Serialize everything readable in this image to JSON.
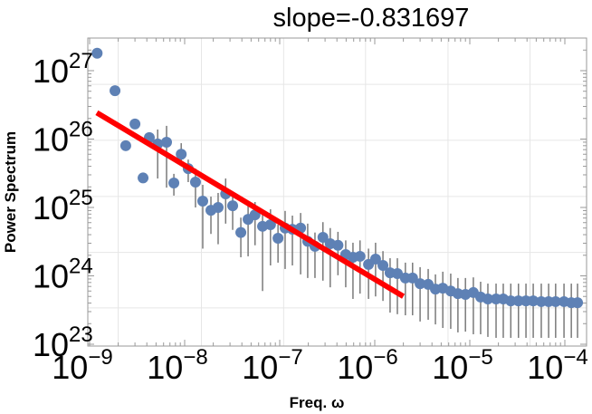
{
  "chart_data": {
    "type": "scatter",
    "title": "slope=-0.831697",
    "xlabel": "Freq. ω",
    "ylabel": "Power Spectrum",
    "x_scale": "log",
    "y_scale": "log",
    "xlim": [
      9.6e-10,
      0.00017
    ],
    "ylim": [
      9.4e+22,
      3e+27
    ],
    "grid": true,
    "x_gridlines": [
      2e-09,
      1.5e-08,
      1.1e-07,
      8e-07,
      5.9e-06,
      4.3e-05
    ],
    "y_gridlines": [
      6.3e+26,
      9.6e+25,
      1.45e+25,
      2.2e+24,
      3.4e+23
    ],
    "x_ticks": [
      {
        "value": 1e-09,
        "base": "10",
        "exp": "−9"
      },
      {
        "value": 1e-08,
        "base": "10",
        "exp": "−8"
      },
      {
        "value": 1e-07,
        "base": "10",
        "exp": "−7"
      },
      {
        "value": 1e-06,
        "base": "10",
        "exp": "−6"
      },
      {
        "value": 1e-05,
        "base": "10",
        "exp": "−5"
      },
      {
        "value": 0.0001,
        "base": "10",
        "exp": "−4"
      }
    ],
    "y_ticks": [
      {
        "value": 1e+23,
        "base": "10",
        "exp": "23"
      },
      {
        "value": 1e+24,
        "base": "10",
        "exp": "24"
      },
      {
        "value": 1e+25,
        "base": "10",
        "exp": "25"
      },
      {
        "value": 1e+26,
        "base": "10",
        "exp": "26"
      },
      {
        "value": 1e+27,
        "base": "10",
        "exp": "27"
      }
    ],
    "colors": {
      "points": "#5e81b5",
      "error_bars": "#7a7a7a",
      "fit_line": "#ff0000",
      "grid": "#e6e6e6"
    },
    "series": [
      {
        "kind": "points_with_error_bars",
        "x": [
          1.2e-09,
          1.85e-09,
          2.4e-09,
          3e-09,
          3.65e-09,
          4.25e-09,
          5.2e-09,
          6.45e-09,
          7.7e-09,
          9.2e-09,
          1.09e-08,
          1.3e-08,
          1.55e-08,
          1.89e-08,
          2.25e-08,
          2.7e-08,
          3.2e-08,
          3.9e-08,
          4.65e-08,
          5.5e-08,
          6.6e-08,
          8e-08,
          9.6e-08,
          1.14e-07,
          1.36e-07,
          1.66e-07,
          1.97e-07,
          2.35e-07,
          2.85e-07,
          3.4e-07,
          4.1e-07,
          4.95e-07,
          5.9e-07,
          7e-07,
          8.6e-07,
          1.02e-06,
          1.22e-06,
          1.45e-06,
          1.73e-06,
          2.1e-06,
          2.5e-06,
          3e-06,
          3.65e-06,
          4.35e-06,
          5.2e-06,
          6.3e-06,
          7.5e-06,
          9e-06,
          1.09e-05,
          1.3e-05,
          1.55e-05,
          1.89e-05,
          2.25e-05,
          2.7e-05,
          3.25e-05,
          3.9e-05,
          4.65e-05,
          5.65e-05,
          6.75e-05,
          8e-05,
          9.8e-05,
          0.000117,
          0.000136
        ],
        "y": [
          1.8e+27,
          5.1e+26,
          8e+25,
          1.66e+26,
          2.7e+25,
          1.05e+26,
          8.5e+25,
          9e+25,
          2.28e+25,
          6e+25,
          3.7e+25,
          2.35e+25,
          1.24e+25,
          9.1e+24,
          1e+25,
          1.58e+25,
          1.06e+25,
          4.3e+24,
          6.7e+24,
          7.8e+24,
          5.3e+24,
          5.6e+24,
          3.55e+24,
          5e+24,
          4.8e+24,
          5e+24,
          3.2e+24,
          2.7e+24,
          3.65e+24,
          2.95e+24,
          2.8e+24,
          2.05e+24,
          1.87e+24,
          1.93e+24,
          1.47e+24,
          1.76e+24,
          1.42e+24,
          1.11e+24,
          1.08e+24,
          9.3e+23,
          9.3e+23,
          7.7e+23,
          7.5e+23,
          6.4e+23,
          6.6e+23,
          6e+23,
          5.5e+23,
          5.35e+23,
          5.7e+23,
          4.9e+23,
          4.6e+23,
          4.6e+23,
          4.6e+23,
          4.3e+23,
          4.3e+23,
          4.3e+23,
          4.3e+23,
          4.2e+23,
          4.2e+23,
          4.2e+23,
          4.2e+23,
          4.05e+23,
          4.05e+23
        ],
        "err_high": [
          null,
          null,
          null,
          null,
          null,
          null,
          1.38e+26,
          1.56e+26,
          3.1e+25,
          8.7e+25,
          5e+25,
          3.7e+25,
          2.14e+25,
          1.44e+25,
          1.63e+25,
          2.65e+25,
          1.63e+25,
          7.1e+24,
          1.24e+25,
          1.2e+25,
          9.1e+24,
          9.4e+24,
          5.6e+24,
          8.9e+24,
          7.6e+24,
          8.3e+24,
          5.8e+24,
          4.3e+24,
          6.1e+24,
          5e+24,
          4.4e+24,
          3.3e+24,
          3.05e+24,
          3.3e+24,
          2.5e+24,
          3.05e+24,
          2.3e+24,
          1.81e+24,
          1.81e+24,
          1.56e+24,
          1.56e+24,
          1.34e+24,
          1.26e+24,
          1.05e+24,
          1.15e+24,
          1.08e+24,
          9.3e+23,
          9.3e+23,
          9.5e+23,
          8.2e+23,
          7.7e+23,
          7.7e+23,
          7.7e+23,
          7.7e+23,
          7.7e+23,
          7.7e+23,
          7.7e+23,
          7.7e+23,
          7.7e+23,
          7.7e+23,
          7.7e+23,
          7.7e+23,
          7.7e+23
        ],
        "err_low": [
          null,
          null,
          null,
          null,
          null,
          null,
          2.65e+25,
          1.95e+25,
          1.49e+25,
          4.2e+25,
          2.35e+25,
          1e+25,
          2.5e+24,
          4.1e+24,
          2.9e+24,
          5.8e+24,
          4.7e+24,
          1.87e+24,
          1.93e+24,
          2.8e+24,
          6e+23,
          1.42e+24,
          1.56e+24,
          1.26e+24,
          1.42e+24,
          1.05e+24,
          9.3e+23,
          9.3e+23,
          8.5e+23,
          6.8e+23,
          1.02e+24,
          6.8e+23,
          4.6e+23,
          5.5e+23,
          4.6e+23,
          5e+23,
          4.3e+23,
          2.9e+23,
          2.75e+23,
          2.65e+23,
          2.65e+23,
          2.15e+23,
          2.28e+23,
          1.95e+23,
          1.73e+23,
          1.68e+23,
          1.49e+23,
          1.53e+23,
          1.4e+23,
          1.4e+23,
          1.28e+23,
          1.24e+23,
          1.24e+23,
          1.24e+23,
          1.24e+23,
          1.24e+23,
          1.24e+23,
          1.24e+23,
          1.24e+23,
          1.24e+23,
          1.24e+23,
          1.24e+23,
          1.24e+23
        ]
      },
      {
        "kind": "fit_line",
        "slope": -0.831697,
        "x": [
          1.19e-09,
          2e-06
        ],
        "y": [
          2.43e+26,
          5e+23
        ]
      }
    ]
  }
}
